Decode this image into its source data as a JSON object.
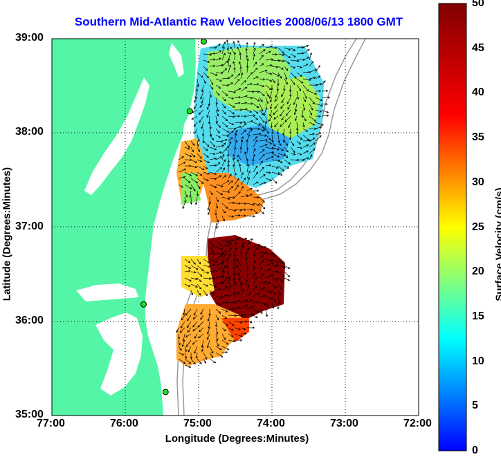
{
  "title": "Southern Mid-Atlantic Raw Velocities 2008/06/13 1800 GMT",
  "xlabel": "Longitude (Degrees:Minutes)",
  "ylabel": "Latitude (Degrees:Minutes)",
  "x_ticks": [
    "77:00",
    "76:00",
    "75:00",
    "74:00",
    "73:00",
    "72:00"
  ],
  "y_ticks": [
    "39:00",
    "38:00",
    "37:00",
    "36:00",
    "35:00"
  ],
  "colorbar": {
    "label": "Surface Velocity (cm/s)",
    "ticks": [
      "50",
      "45",
      "40",
      "35",
      "30",
      "25",
      "20",
      "15",
      "10",
      "5",
      "0"
    ],
    "range": [
      0,
      50
    ]
  },
  "map": {
    "lon_range": [
      -77,
      -72
    ],
    "lat_range": [
      35,
      39
    ],
    "grid": "dotted",
    "land_color": "#55f5a8",
    "ocean_color": "#ffffff",
    "stations": [
      {
        "lon": -74.93,
        "lat": 38.97
      },
      {
        "lon": -75.12,
        "lat": 38.23
      },
      {
        "lon": -75.75,
        "lat": 36.18
      },
      {
        "lon": -75.45,
        "lat": 35.25
      }
    ]
  }
}
